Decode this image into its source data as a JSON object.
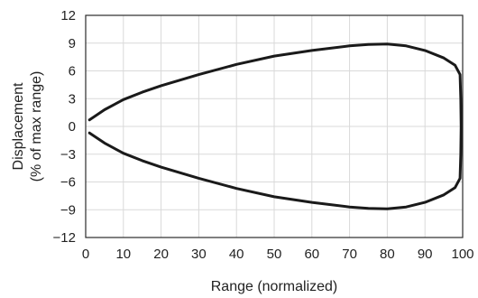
{
  "chart_data": {
    "type": "line",
    "xlabel": "Range (normalized)",
    "ylabel_lines": [
      "Displacement",
      "(% of max range)"
    ],
    "xlim": [
      0,
      100
    ],
    "ylim": [
      -12,
      12
    ],
    "x_ticks": [
      0,
      10,
      20,
      30,
      40,
      50,
      60,
      70,
      80,
      90,
      100
    ],
    "y_ticks": [
      12,
      9,
      6,
      3,
      0,
      -3,
      -6,
      -9,
      -12
    ],
    "grid": true,
    "series": [
      {
        "points": [
          [
            1,
            0.7
          ],
          [
            5,
            1.8
          ],
          [
            10,
            2.9
          ],
          [
            15,
            3.7
          ],
          [
            20,
            4.4
          ],
          [
            30,
            5.6
          ],
          [
            40,
            6.7
          ],
          [
            50,
            7.6
          ],
          [
            60,
            8.2
          ],
          [
            70,
            8.7
          ],
          [
            75,
            8.85
          ],
          [
            80,
            8.9
          ],
          [
            85,
            8.7
          ],
          [
            90,
            8.2
          ],
          [
            95,
            7.4
          ],
          [
            98,
            6.6
          ],
          [
            99.3,
            5.6
          ],
          [
            99.5,
            3
          ],
          [
            99.6,
            0
          ],
          [
            99.5,
            -3
          ],
          [
            99.3,
            -5.6
          ],
          [
            98,
            -6.6
          ],
          [
            95,
            -7.4
          ],
          [
            90,
            -8.2
          ],
          [
            85,
            -8.7
          ],
          [
            80,
            -8.9
          ],
          [
            75,
            -8.85
          ],
          [
            70,
            -8.7
          ],
          [
            60,
            -8.2
          ],
          [
            50,
            -7.6
          ],
          [
            40,
            -6.7
          ],
          [
            30,
            -5.6
          ],
          [
            20,
            -4.4
          ],
          [
            15,
            -3.7
          ],
          [
            10,
            -2.9
          ],
          [
            5,
            -1.8
          ],
          [
            1,
            -0.7
          ]
        ]
      }
    ]
  }
}
